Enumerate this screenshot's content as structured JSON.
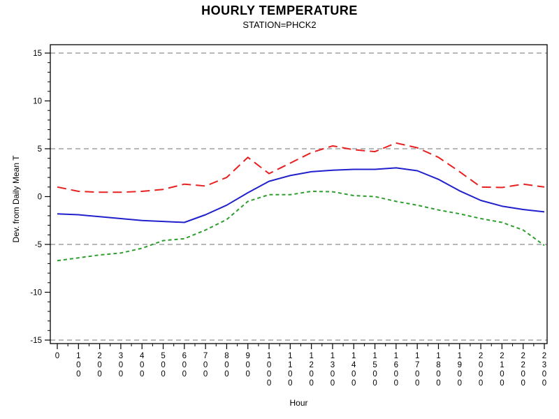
{
  "chart_data": {
    "type": "line",
    "title": "HOURLY TEMPERATURE",
    "subtitle": "STATION=PHCK2",
    "xlabel": "Hour",
    "ylabel": "Dev. from Daily Mean T",
    "x": [
      0,
      100,
      200,
      300,
      400,
      500,
      600,
      700,
      800,
      900,
      1000,
      1100,
      1200,
      1300,
      1400,
      1500,
      1600,
      1700,
      1800,
      1900,
      2000,
      2100,
      2200,
      2300
    ],
    "x_tick_labels": [
      "0",
      "100",
      "200",
      "300",
      "400",
      "500",
      "600",
      "700",
      "800",
      "900",
      "1000",
      "1100",
      "1200",
      "1300",
      "1400",
      "1500",
      "1600",
      "1700",
      "1800",
      "1900",
      "2000",
      "2100",
      "2200",
      "2300"
    ],
    "y_ticks": [
      -15,
      -10,
      -5,
      0,
      5,
      10,
      15
    ],
    "ylim": [
      -15,
      15
    ],
    "reference_lines_y": [
      15,
      5,
      -5,
      -15
    ],
    "grid": "horizontal dashed reference lines only",
    "legend": "none",
    "colors": {
      "red_series": "#e82020",
      "blue_series": "#2020cc",
      "green_series": "#2e9e2e",
      "reference_line": "#a0a0a0",
      "axis": "#000000",
      "background": "#ffffff"
    },
    "series": [
      {
        "name": "red-dashed",
        "style": "dashed",
        "color": "#e82020",
        "values": [
          1.0,
          0.55,
          0.45,
          0.45,
          0.55,
          0.75,
          1.3,
          1.1,
          2.0,
          4.1,
          2.4,
          3.5,
          4.6,
          5.3,
          4.9,
          4.7,
          5.6,
          5.1,
          4.1,
          2.6,
          1.0,
          0.95,
          1.3,
          1.0
        ]
      },
      {
        "name": "blue-solid",
        "style": "solid",
        "color": "#2020cc",
        "values": [
          -1.8,
          -1.9,
          -2.1,
          -2.3,
          -2.5,
          -2.6,
          -2.7,
          -1.9,
          -0.9,
          0.4,
          1.6,
          2.2,
          2.6,
          2.75,
          2.85,
          2.85,
          3.0,
          2.7,
          1.8,
          0.6,
          -0.4,
          -1.0,
          -1.35,
          -1.6
        ]
      },
      {
        "name": "green-dashed",
        "style": "short-dashed",
        "color": "#2e9e2e",
        "values": [
          -6.7,
          -6.4,
          -6.1,
          -5.9,
          -5.4,
          -4.6,
          -4.4,
          -3.5,
          -2.4,
          -0.5,
          0.2,
          0.2,
          0.55,
          0.5,
          0.1,
          0.0,
          -0.5,
          -0.9,
          -1.4,
          -1.8,
          -2.3,
          -2.7,
          -3.5,
          -5.1
        ]
      }
    ]
  }
}
